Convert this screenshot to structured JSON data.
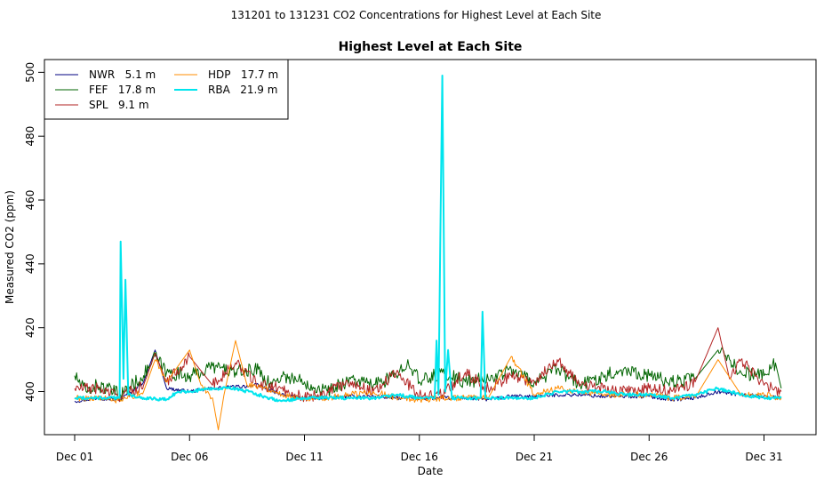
{
  "super_title": "131201  to  131231 CO2 Concentrations for Highest Level at Each Site",
  "chart_data": {
    "type": "line",
    "title": "Highest Level at Each Site",
    "xlabel": "Date",
    "ylabel": "Measured CO2 (ppm)",
    "x_unit": "date",
    "xlim": [
      "2013-12-01",
      "2014-01-01"
    ],
    "ylim": [
      386.5,
      504
    ],
    "x_ticks": [
      "Dec 01",
      "Dec 06",
      "Dec 11",
      "Dec 16",
      "Dec 21",
      "Dec 26",
      "Dec 31"
    ],
    "x_tick_dates": [
      "2013-12-01",
      "2013-12-06",
      "2013-12-11",
      "2013-12-16",
      "2013-12-21",
      "2013-12-26",
      "2013-12-31"
    ],
    "y_ticks": [
      400,
      420,
      440,
      460,
      480,
      500
    ],
    "grid": false,
    "legend_position": "top-left",
    "series": [
      {
        "name": "NWR   5.1 m",
        "color": "#000080",
        "points": [
          [
            "2013-12-01",
            397
          ],
          [
            "2013-12-02",
            398
          ],
          [
            "2013-12-03",
            397.5
          ],
          [
            "2013-12-04",
            403
          ],
          [
            "2013-12-04T12:00",
            413
          ],
          [
            "2013-12-05",
            401
          ],
          [
            "2013-12-06",
            400
          ],
          [
            "2013-12-07",
            401
          ],
          [
            "2013-12-08",
            401.5
          ],
          [
            "2013-12-09",
            402
          ],
          [
            "2013-12-10",
            399
          ],
          [
            "2013-12-11",
            398
          ],
          [
            "2013-12-12",
            398
          ],
          [
            "2013-12-13",
            398.5
          ],
          [
            "2013-12-14",
            398.5
          ],
          [
            "2013-12-15",
            398
          ],
          [
            "2013-12-16",
            398
          ],
          [
            "2013-12-17",
            398
          ],
          [
            "2013-12-18",
            398
          ],
          [
            "2013-12-19",
            397.5
          ],
          [
            "2013-12-20",
            398.5
          ],
          [
            "2013-12-21",
            398.5
          ],
          [
            "2013-12-22",
            399
          ],
          [
            "2013-12-23",
            399
          ],
          [
            "2013-12-24",
            398.5
          ],
          [
            "2013-12-25",
            398.5
          ],
          [
            "2013-12-26",
            398.5
          ],
          [
            "2013-12-27",
            397.5
          ],
          [
            "2013-12-28",
            398
          ],
          [
            "2013-12-29",
            400
          ],
          [
            "2013-12-30",
            399
          ],
          [
            "2013-12-31",
            398.5
          ],
          [
            "2013-12-31T18:00",
            398
          ]
        ]
      },
      {
        "name": "FEF   17.8 m",
        "color": "#006400",
        "points": [
          [
            "2013-12-01",
            405
          ],
          [
            "2013-12-01T12:00",
            400
          ],
          [
            "2013-12-02",
            402
          ],
          [
            "2013-12-03",
            399
          ],
          [
            "2013-12-04",
            405
          ],
          [
            "2013-12-04T12:00",
            411
          ],
          [
            "2013-12-05",
            406
          ],
          [
            "2013-12-06",
            405
          ],
          [
            "2013-12-06T12:00",
            406
          ],
          [
            "2013-12-07",
            408
          ],
          [
            "2013-12-08",
            406
          ],
          [
            "2013-12-09",
            407
          ],
          [
            "2013-12-09T12:00",
            402
          ],
          [
            "2013-12-10",
            405
          ],
          [
            "2013-12-11",
            403
          ],
          [
            "2013-12-12",
            400
          ],
          [
            "2013-12-13",
            404
          ],
          [
            "2013-12-14",
            402
          ],
          [
            "2013-12-15",
            405
          ],
          [
            "2013-12-15T12:00",
            410
          ],
          [
            "2013-12-16",
            403
          ],
          [
            "2013-12-17",
            406
          ],
          [
            "2013-12-18",
            403
          ],
          [
            "2013-12-19",
            404
          ],
          [
            "2013-12-20",
            407
          ],
          [
            "2013-12-21",
            403
          ],
          [
            "2013-12-22",
            407
          ],
          [
            "2013-12-23",
            402
          ],
          [
            "2013-12-24",
            405
          ],
          [
            "2013-12-25",
            407
          ],
          [
            "2013-12-26",
            405
          ],
          [
            "2013-12-27",
            403
          ],
          [
            "2013-12-28",
            404
          ],
          [
            "2013-12-29",
            413
          ],
          [
            "2013-12-30",
            406
          ],
          [
            "2013-12-31",
            405
          ],
          [
            "2013-12-31T12:00",
            409
          ],
          [
            "2013-12-31T18:00",
            401
          ]
        ]
      },
      {
        "name": "SPL   9.1 m",
        "color": "#B22222",
        "points": [
          [
            "2013-12-01",
            401
          ],
          [
            "2013-12-02",
            401
          ],
          [
            "2013-12-03",
            398.5
          ],
          [
            "2013-12-04",
            402
          ],
          [
            "2013-12-04T12:00",
            412
          ],
          [
            "2013-12-05",
            403
          ],
          [
            "2013-12-06",
            411
          ],
          [
            "2013-12-07",
            402
          ],
          [
            "2013-12-08",
            409
          ],
          [
            "2013-12-09",
            402
          ],
          [
            "2013-12-10",
            401
          ],
          [
            "2013-12-11",
            398
          ],
          [
            "2013-12-12",
            400
          ],
          [
            "2013-12-13",
            403
          ],
          [
            "2013-12-14",
            400
          ],
          [
            "2013-12-15",
            406
          ],
          [
            "2013-12-16",
            399
          ],
          [
            "2013-12-17",
            399
          ],
          [
            "2013-12-18",
            406
          ],
          [
            "2013-12-19",
            401
          ],
          [
            "2013-12-20",
            405
          ],
          [
            "2013-12-21",
            403
          ],
          [
            "2013-12-22",
            410
          ],
          [
            "2013-12-23",
            402
          ],
          [
            "2013-12-24",
            401
          ],
          [
            "2013-12-25",
            400
          ],
          [
            "2013-12-26",
            401
          ],
          [
            "2013-12-27",
            400
          ],
          [
            "2013-12-28",
            403
          ],
          [
            "2013-12-29",
            420
          ],
          [
            "2013-12-29T12:00",
            404
          ],
          [
            "2013-12-30",
            410
          ],
          [
            "2013-12-31",
            402
          ],
          [
            "2013-12-31T18:00",
            400
          ]
        ]
      },
      {
        "name": "HDP   17.7 m",
        "color": "#FF8C00",
        "points": [
          [
            "2013-12-01",
            398
          ],
          [
            "2013-12-02",
            398
          ],
          [
            "2013-12-03",
            397
          ],
          [
            "2013-12-04",
            400
          ],
          [
            "2013-12-04T12:00",
            410
          ],
          [
            "2013-12-05",
            403
          ],
          [
            "2013-12-06",
            413
          ],
          [
            "2013-12-06T12:00",
            402
          ],
          [
            "2013-12-07",
            398
          ],
          [
            "2013-12-07T06:00",
            388
          ],
          [
            "2013-12-07T12:00",
            399
          ],
          [
            "2013-12-08",
            416
          ],
          [
            "2013-12-08T12:00",
            402
          ],
          [
            "2013-12-09",
            402
          ],
          [
            "2013-12-10",
            399
          ],
          [
            "2013-12-11",
            398
          ],
          [
            "2013-12-12",
            398
          ],
          [
            "2013-12-13",
            399
          ],
          [
            "2013-12-14",
            400
          ],
          [
            "2013-12-15",
            398
          ],
          [
            "2013-12-16",
            397.5
          ],
          [
            "2013-12-17",
            398
          ],
          [
            "2013-12-18",
            398
          ],
          [
            "2013-12-19",
            398
          ],
          [
            "2013-12-20",
            411
          ],
          [
            "2013-12-20T12:00",
            405
          ],
          [
            "2013-12-21",
            399
          ],
          [
            "2013-12-22",
            401
          ],
          [
            "2013-12-23",
            400
          ],
          [
            "2013-12-24",
            399
          ],
          [
            "2013-12-25",
            399
          ],
          [
            "2013-12-26",
            399
          ],
          [
            "2013-12-27",
            398
          ],
          [
            "2013-12-28",
            398
          ],
          [
            "2013-12-29",
            410
          ],
          [
            "2013-12-30",
            399
          ],
          [
            "2013-12-31",
            399
          ],
          [
            "2013-12-31T18:00",
            398
          ]
        ]
      },
      {
        "name": "RBA   21.9 m",
        "color": "#00E5EE",
        "points": [
          [
            "2013-12-01",
            398
          ],
          [
            "2013-12-02",
            398
          ],
          [
            "2013-12-02T23:00",
            398
          ],
          [
            "2013-12-03",
            447
          ],
          [
            "2013-12-03T03:00",
            404
          ],
          [
            "2013-12-03T05:00",
            435
          ],
          [
            "2013-12-03T08:00",
            399
          ],
          [
            "2013-12-04",
            398
          ],
          [
            "2013-12-05",
            397.5
          ],
          [
            "2013-12-05T12:00",
            400
          ],
          [
            "2013-12-06",
            400
          ],
          [
            "2013-12-07",
            401
          ],
          [
            "2013-12-08",
            401
          ],
          [
            "2013-12-09",
            399
          ],
          [
            "2013-12-10",
            397
          ],
          [
            "2013-12-11",
            398
          ],
          [
            "2013-12-12",
            398
          ],
          [
            "2013-12-13",
            398
          ],
          [
            "2013-12-14",
            398
          ],
          [
            "2013-12-15",
            399
          ],
          [
            "2013-12-16",
            398
          ],
          [
            "2013-12-16T16:00",
            398
          ],
          [
            "2013-12-16T18:00",
            416
          ],
          [
            "2013-12-16T20:00",
            399
          ],
          [
            "2013-12-17",
            499
          ],
          [
            "2013-12-17T03:00",
            400
          ],
          [
            "2013-12-17T06:00",
            413
          ],
          [
            "2013-12-17T10:00",
            398
          ],
          [
            "2013-12-18",
            398
          ],
          [
            "2013-12-18T16:00",
            398
          ],
          [
            "2013-12-18T18:00",
            425
          ],
          [
            "2013-12-18T21:00",
            398
          ],
          [
            "2013-12-19",
            398
          ],
          [
            "2013-12-20",
            398
          ],
          [
            "2013-12-21",
            398
          ],
          [
            "2013-12-22",
            400
          ],
          [
            "2013-12-23",
            400
          ],
          [
            "2013-12-24",
            400
          ],
          [
            "2013-12-25",
            399
          ],
          [
            "2013-12-26",
            399
          ],
          [
            "2013-12-27",
            398
          ],
          [
            "2013-12-28",
            399
          ],
          [
            "2013-12-29",
            401
          ],
          [
            "2013-12-30",
            399
          ],
          [
            "2013-12-31",
            398
          ],
          [
            "2013-12-31T18:00",
            398
          ]
        ]
      }
    ]
  }
}
